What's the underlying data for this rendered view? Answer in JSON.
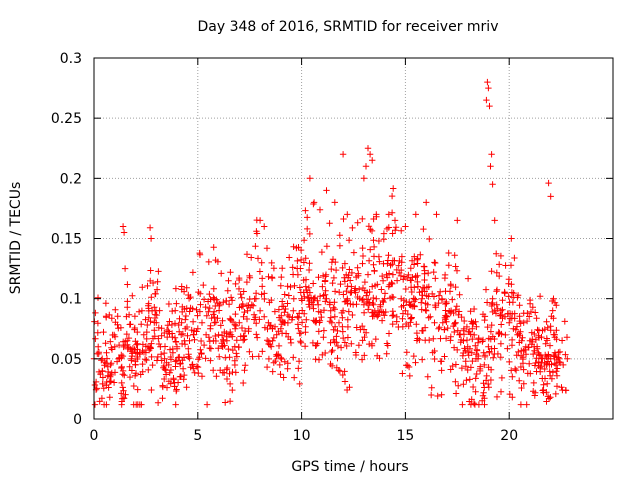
{
  "chart_data": {
    "type": "scatter",
    "title": "Day 348 of 2016, SRMTID for receiver mriv",
    "xlabel": "GPS time / hours",
    "ylabel": "SRMTID / TECUs",
    "xlim": [
      0,
      25
    ],
    "ylim": [
      0,
      0.3
    ],
    "x_ticks": [
      0,
      5,
      10,
      15,
      20
    ],
    "x_tick_labels": [
      "0",
      "5",
      "10",
      "15",
      "20"
    ],
    "y_ticks": [
      0,
      0.05,
      0.1,
      0.15,
      0.2,
      0.25,
      0.3
    ],
    "y_tick_labels": [
      "0",
      "0.05",
      "0.1",
      "0.15",
      "0.2",
      "0.25",
      "0.3"
    ],
    "grid": true,
    "marker": "+",
    "series_color": "#ff0000",
    "series": [
      {
        "name": "SRMTID",
        "x": [
          0.0,
          0.2,
          0.4,
          0.6,
          0.8,
          1.0,
          1.2,
          1.4,
          1.6,
          1.8,
          2.0,
          2.2,
          2.4,
          2.6,
          2.8,
          3.0,
          3.2,
          3.4,
          3.6,
          3.8,
          4.0,
          4.2,
          4.4,
          4.6,
          4.8,
          5.0,
          5.2,
          5.4,
          5.6,
          5.8,
          6.0,
          6.2,
          6.4,
          6.6,
          6.8,
          7.0,
          7.2,
          7.4,
          7.6,
          7.8,
          8.0,
          8.2,
          8.4,
          8.6,
          8.8,
          9.0,
          9.2,
          9.4,
          9.6,
          9.8,
          10.0,
          10.2,
          10.4,
          10.6,
          10.8,
          11.0,
          11.2,
          11.4,
          11.6,
          11.8,
          12.0,
          12.2,
          12.4,
          12.6,
          12.8,
          13.0,
          13.2,
          13.4,
          13.6,
          13.8,
          14.0,
          14.2,
          14.4,
          14.6,
          14.8,
          15.0,
          15.2,
          15.4,
          15.6,
          15.8,
          16.0,
          16.2,
          16.4,
          16.6,
          16.8,
          17.0,
          17.2,
          17.4,
          17.6,
          17.8,
          18.0,
          18.2,
          18.4,
          18.6,
          18.8,
          19.0,
          19.2,
          19.4,
          19.6,
          19.8,
          20.0,
          20.2,
          20.4,
          20.6,
          20.8,
          21.0,
          21.2,
          21.4,
          21.6,
          21.8,
          22.0,
          22.2,
          22.4,
          22.6,
          22.8,
          1.4,
          1.45,
          1.5,
          2.7,
          2.75,
          8.0,
          8.2,
          10.4,
          10.6,
          11.2,
          11.6,
          12.0,
          12.2,
          13.0,
          13.1,
          13.2,
          13.3,
          13.4,
          13.6,
          14.2,
          14.5,
          15.0,
          15.5,
          16.0,
          16.5,
          17.5,
          18.9,
          18.95,
          19.0,
          19.05,
          19.1,
          19.15,
          19.2,
          19.3,
          20.1,
          21.9,
          22.0
        ],
        "y": [
          0.05,
          0.06,
          0.04,
          0.055,
          0.045,
          0.06,
          0.05,
          0.04,
          0.065,
          0.05,
          0.045,
          0.055,
          0.07,
          0.06,
          0.09,
          0.08,
          0.06,
          0.05,
          0.045,
          0.055,
          0.06,
          0.07,
          0.075,
          0.065,
          0.07,
          0.075,
          0.08,
          0.07,
          0.075,
          0.08,
          0.07,
          0.06,
          0.065,
          0.07,
          0.075,
          0.08,
          0.085,
          0.09,
          0.095,
          0.1,
          0.09,
          0.085,
          0.08,
          0.075,
          0.07,
          0.075,
          0.08,
          0.085,
          0.09,
          0.085,
          0.1,
          0.11,
          0.105,
          0.1,
          0.095,
          0.11,
          0.1,
          0.09,
          0.085,
          0.08,
          0.09,
          0.1,
          0.11,
          0.105,
          0.1,
          0.095,
          0.12,
          0.11,
          0.1,
          0.095,
          0.1,
          0.11,
          0.12,
          0.115,
          0.1,
          0.09,
          0.095,
          0.1,
          0.11,
          0.1,
          0.09,
          0.085,
          0.08,
          0.075,
          0.08,
          0.085,
          0.09,
          0.08,
          0.07,
          0.065,
          0.06,
          0.055,
          0.05,
          0.04,
          0.045,
          0.06,
          0.1,
          0.095,
          0.09,
          0.085,
          0.08,
          0.075,
          0.07,
          0.065,
          0.06,
          0.065,
          0.06,
          0.055,
          0.05,
          0.045,
          0.05,
          0.055,
          0.05,
          0.045,
          0.05,
          0.16,
          0.155,
          0.125,
          0.159,
          0.15,
          0.165,
          0.16,
          0.2,
          0.18,
          0.19,
          0.18,
          0.22,
          0.17,
          0.2,
          0.21,
          0.225,
          0.22,
          0.215,
          0.17,
          0.17,
          0.165,
          0.16,
          0.17,
          0.18,
          0.17,
          0.165,
          0.265,
          0.28,
          0.275,
          0.26,
          0.21,
          0.22,
          0.195,
          0.165,
          0.15,
          0.196,
          0.185
        ],
        "noise_cloud": {
          "points_per_hour": 60,
          "x_range": [
            0.0,
            22.8
          ],
          "spread": 0.03
        }
      }
    ]
  }
}
